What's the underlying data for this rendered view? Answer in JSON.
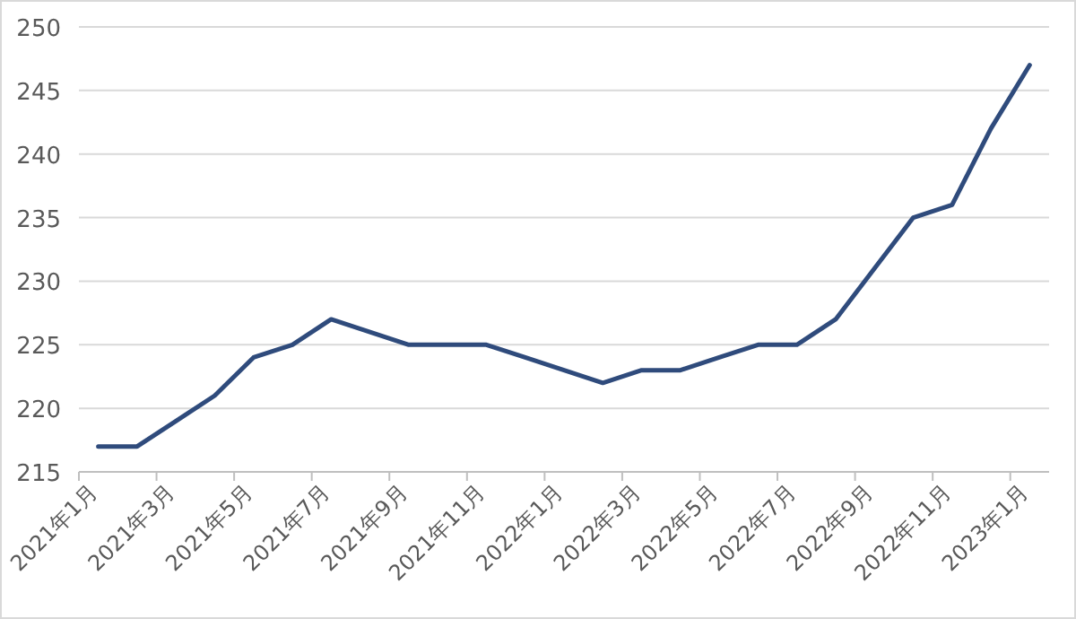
{
  "chart_data": {
    "type": "line",
    "categories": [
      "2021年1月",
      null,
      "2021年3月",
      null,
      "2021年5月",
      null,
      "2021年7月",
      null,
      "2021年9月",
      null,
      "2021年11月",
      null,
      "2022年1月",
      null,
      "2022年3月",
      null,
      "2022年5月",
      null,
      "2022年7月",
      null,
      "2022年9月",
      null,
      "2022年11月",
      null,
      "2023年1月"
    ],
    "series": [
      {
        "color": "#2f4b7c",
        "values": [
          217,
          217,
          219,
          221,
          224,
          225,
          227,
          226,
          225,
          225,
          225,
          224,
          223,
          222,
          223,
          223,
          224,
          225,
          225,
          227,
          231,
          235,
          236,
          242,
          247
        ]
      }
    ],
    "ylim": [
      215,
      250
    ],
    "yticks": [
      215,
      220,
      225,
      230,
      235,
      240,
      245,
      250
    ],
    "grid": "y",
    "marker": "none",
    "line_style": "solid"
  }
}
